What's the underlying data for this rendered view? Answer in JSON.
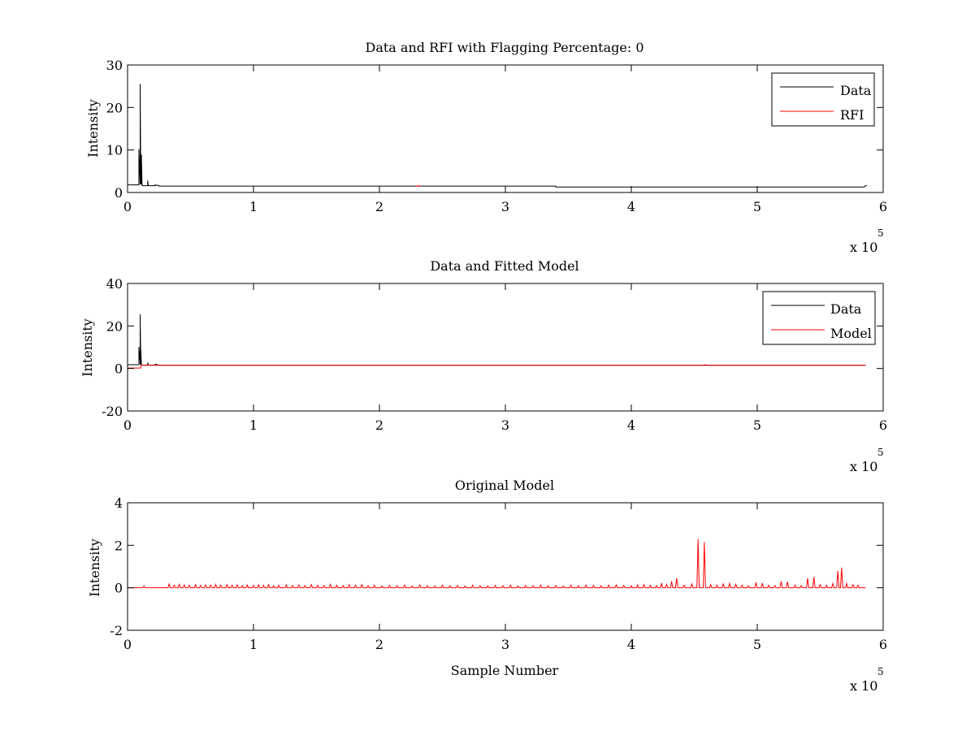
{
  "figure": {
    "background": "#ffffff",
    "axes_color": "#000000"
  },
  "chart_data": [
    {
      "type": "line",
      "title": "Data and RFI with Flagging Percentage: 0",
      "xlabel": "",
      "ylabel": "Intensity",
      "xlim": [
        0,
        600000
      ],
      "ylim": [
        0,
        30
      ],
      "xticks": [
        "0",
        "1",
        "2",
        "3",
        "4",
        "5",
        "6"
      ],
      "xtick_values": [
        0,
        100000,
        200000,
        300000,
        400000,
        500000,
        600000
      ],
      "yticks": [
        "0",
        "10",
        "20",
        "30"
      ],
      "ytick_values": [
        0,
        10,
        20,
        30
      ],
      "x_multiplier": "x 10",
      "x_multiplier_exponent": "5",
      "legend": {
        "location": "top-right"
      },
      "series": [
        {
          "name": "Data",
          "color": "#000000",
          "x": [
            0,
            9000,
            9000,
            10000,
            10000,
            10500,
            10500,
            11000,
            11000,
            11500,
            11500,
            12000,
            12000,
            16000,
            16000,
            16400,
            16400,
            22000,
            22000,
            25000,
            25000,
            340000,
            340000,
            585000,
            586000,
            587000
          ],
          "y": [
            1.8,
            1.8,
            10.2,
            1.9,
            25.5,
            1.9,
            8.8,
            1.9,
            8.9,
            1.9,
            1.7,
            1.7,
            1.6,
            1.6,
            2.8,
            1.6,
            1.6,
            1.6,
            1.8,
            1.6,
            1.5,
            1.5,
            1.3,
            1.3,
            1.6,
            1.6
          ]
        },
        {
          "name": "RFI",
          "color": "#ff0000",
          "x": [
            229000,
            231000,
            231000,
            233000
          ],
          "y": [
            1.5,
            1.5,
            1.6,
            1.5
          ]
        }
      ]
    },
    {
      "type": "line",
      "title": "Data and Fitted Model",
      "xlabel": "",
      "ylabel": "Intensity",
      "xlim": [
        0,
        600000
      ],
      "ylim": [
        -20,
        40
      ],
      "xticks": [
        "0",
        "1",
        "2",
        "3",
        "4",
        "5",
        "6"
      ],
      "xtick_values": [
        0,
        100000,
        200000,
        300000,
        400000,
        500000,
        600000
      ],
      "yticks": [
        "-20",
        "0",
        "20",
        "40"
      ],
      "ytick_values": [
        -20,
        0,
        20,
        40
      ],
      "x_multiplier": "x 10",
      "x_multiplier_exponent": "5",
      "legend": {
        "location": "top-right"
      },
      "series": [
        {
          "name": "Data",
          "color": "#000000",
          "x": [
            0,
            9000,
            9000,
            10000,
            10000,
            10500,
            10500,
            11000,
            11000,
            16000,
            16000,
            16400,
            16400,
            22000,
            22000,
            25000,
            25000,
            586000
          ],
          "y": [
            1.8,
            1.8,
            10.2,
            1.9,
            25.5,
            1.9,
            8.8,
            1.9,
            1.6,
            1.6,
            2.8,
            1.6,
            1.6,
            1.6,
            2.0,
            1.6,
            1.5,
            1.5
          ]
        },
        {
          "name": "Model",
          "color": "#ff0000",
          "x": [
            0,
            10500,
            10500,
            458000,
            459000,
            460000,
            586000
          ],
          "y": [
            0.2,
            0.2,
            1.5,
            1.5,
            1.8,
            1.5,
            1.5
          ]
        }
      ]
    },
    {
      "type": "line",
      "title": "Original Model",
      "xlabel": "Sample Number",
      "ylabel": "Intensity",
      "xlim": [
        0,
        600000
      ],
      "ylim": [
        -2,
        4
      ],
      "xticks": [
        "0",
        "1",
        "2",
        "3",
        "4",
        "5",
        "6"
      ],
      "xtick_values": [
        0,
        100000,
        200000,
        300000,
        400000,
        500000,
        600000
      ],
      "yticks": [
        "-2",
        "0",
        "2",
        "4"
      ],
      "ytick_values": [
        -2,
        0,
        2,
        4
      ],
      "x_multiplier": "x 10",
      "x_multiplier_exponent": "5",
      "series": [
        {
          "color": "#ff0000",
          "baseline": 0,
          "xmax": 586000,
          "spikes": [
            [
              13000,
              0.08
            ],
            [
              33000,
              0.18
            ],
            [
              37000,
              0.12
            ],
            [
              41000,
              0.16
            ],
            [
              45000,
              0.14
            ],
            [
              49000,
              0.12
            ],
            [
              54000,
              0.15
            ],
            [
              58000,
              0.11
            ],
            [
              62000,
              0.14
            ],
            [
              66000,
              0.12
            ],
            [
              70000,
              0.16
            ],
            [
              74000,
              0.13
            ],
            [
              79000,
              0.15
            ],
            [
              83000,
              0.12
            ],
            [
              87000,
              0.14
            ],
            [
              91000,
              0.1
            ],
            [
              95000,
              0.13
            ],
            [
              100000,
              0.11
            ],
            [
              104000,
              0.14
            ],
            [
              108000,
              0.12
            ],
            [
              112000,
              0.15
            ],
            [
              116000,
              0.1
            ],
            [
              120000,
              0.12
            ],
            [
              126000,
              0.14
            ],
            [
              131000,
              0.11
            ],
            [
              136000,
              0.13
            ],
            [
              141000,
              0.1
            ],
            [
              146000,
              0.15
            ],
            [
              151000,
              0.12
            ],
            [
              156000,
              0.11
            ],
            [
              161000,
              0.16
            ],
            [
              166000,
              0.12
            ],
            [
              171000,
              0.1
            ],
            [
              176000,
              0.14
            ],
            [
              181000,
              0.12
            ],
            [
              186000,
              0.15
            ],
            [
              191000,
              0.1
            ],
            [
              196000,
              0.12
            ],
            [
              202000,
              0.09
            ],
            [
              208000,
              0.11
            ],
            [
              214000,
              0.1
            ],
            [
              220000,
              0.12
            ],
            [
              226000,
              0.09
            ],
            [
              232000,
              0.13
            ],
            [
              238000,
              0.1
            ],
            [
              244000,
              0.09
            ],
            [
              250000,
              0.12
            ],
            [
              256000,
              0.1
            ],
            [
              262000,
              0.11
            ],
            [
              268000,
              0.09
            ],
            [
              274000,
              0.12
            ],
            [
              280000,
              0.1
            ],
            [
              286000,
              0.09
            ],
            [
              292000,
              0.11
            ],
            [
              298000,
              0.1
            ],
            [
              304000,
              0.12
            ],
            [
              310000,
              0.09
            ],
            [
              316000,
              0.11
            ],
            [
              322000,
              0.1
            ],
            [
              328000,
              0.12
            ],
            [
              334000,
              0.1
            ],
            [
              340000,
              0.11
            ],
            [
              346000,
              0.09
            ],
            [
              352000,
              0.12
            ],
            [
              358000,
              0.1
            ],
            [
              364000,
              0.13
            ],
            [
              370000,
              0.11
            ],
            [
              376000,
              0.1
            ],
            [
              382000,
              0.12
            ],
            [
              388000,
              0.14
            ],
            [
              394000,
              0.11
            ],
            [
              400000,
              0.1
            ],
            [
              405000,
              0.13
            ],
            [
              410000,
              0.15
            ],
            [
              415000,
              0.12
            ],
            [
              420000,
              0.1
            ],
            [
              424000,
              0.22
            ],
            [
              428000,
              0.16
            ],
            [
              432000,
              0.3
            ],
            [
              436000,
              0.45
            ],
            [
              442000,
              0.12
            ],
            [
              448000,
              0.18
            ],
            [
              453000,
              2.3
            ],
            [
              458000,
              2.15
            ],
            [
              463000,
              0.15
            ],
            [
              468000,
              0.12
            ],
            [
              473000,
              0.18
            ],
            [
              478000,
              0.2
            ],
            [
              483000,
              0.16
            ],
            [
              488000,
              0.12
            ],
            [
              493000,
              0.1
            ],
            [
              499000,
              0.25
            ],
            [
              504000,
              0.22
            ],
            [
              509000,
              0.12
            ],
            [
              514000,
              0.1
            ],
            [
              519000,
              0.3
            ],
            [
              524000,
              0.28
            ],
            [
              530000,
              0.12
            ],
            [
              535000,
              0.1
            ],
            [
              540000,
              0.45
            ],
            [
              545000,
              0.5
            ],
            [
              550000,
              0.15
            ],
            [
              555000,
              0.12
            ],
            [
              560000,
              0.2
            ],
            [
              564000,
              0.8
            ],
            [
              567000,
              0.95
            ],
            [
              571000,
              0.2
            ],
            [
              576000,
              0.15
            ],
            [
              580000,
              0.12
            ]
          ]
        }
      ]
    }
  ]
}
